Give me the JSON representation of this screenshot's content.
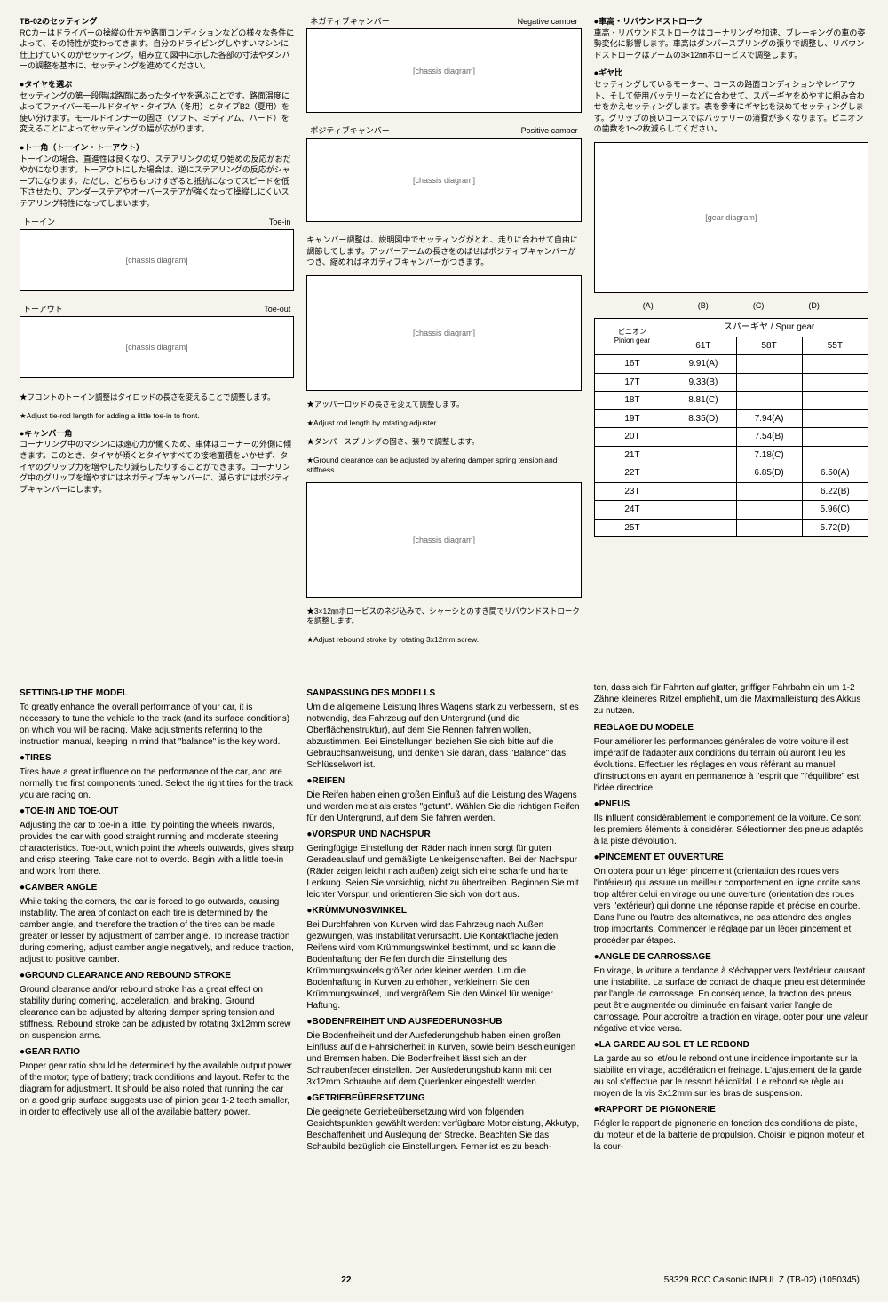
{
  "top": {
    "col1": {
      "jp_head": "TB-02のセッティング",
      "jp_intro": "RCカーはドライバーの操縦の仕方や路面コンディションなどの様々な条件によって、その特性が変わってきます。自分のドライビングしやすいマシンに仕上げていくのがセッティング。組み立て図中に示した各部の寸法やダンパーの調整を基本に、セッティングを進めてください。",
      "jp_tires_head": "●タイヤを選ぶ",
      "jp_tires": "セッティングの第一段階は路面にあったタイヤを選ぶことです。路面温度によってファイバーモールドタイヤ・タイプA（冬用）とタイプB2（夏用）を使い分けます。モールドインナーの固さ（ソフト、ミディアム、ハード）を変えることによってセッティングの幅が広がります。",
      "jp_toe_head": "●トー角（トーイン・トーアウト）",
      "jp_toe": "トーインの場合、直進性は良くなり、ステアリングの切り始めの反応がおだやかになります。トーアウトにした場合は、逆にステアリングの反応がシャープになります。ただし、どちらもつけすぎると抵抗になってスピードを低下させたり、アンダーステアやオーバーステアが強くなって操縦しにくいステアリング特性になってしまいます。",
      "toein_jp": "トーイン",
      "toein_en": "Toe-in",
      "toeout_jp": "トーアウト",
      "toeout_en": "Toe-out",
      "jp_toe_caption": "★フロントのトーイン調整はタイロッドの長さを変えることで調整します。",
      "en_toe_caption": "★Adjust tie-rod length for adding a little toe-in to front.",
      "jp_camber_head": "●キャンバー角",
      "jp_camber": "コーナリング中のマシンには遠心力が働くため、車体はコーナーの外側に傾きます。このとき、タイヤが傾くとタイヤすべての接地面積をいかせず、タイヤのグリップ力を増やしたり減らしたりすることができます。コーナリング中のグリップを増やすにはネガティブキャンバーに、減らすにはポジティブキャンバーにします。"
    },
    "col2": {
      "neg_jp": "ネガティブキャンバー",
      "neg_en": "Negative camber",
      "pos_jp": "ポジティブキャンバー",
      "pos_en": "Positive camber",
      "camber_text_jp": "キャンバー調整は、説明図中でセッティングがとれ、走りに合わせて自由に調節してします。アッパーアームの長さをのばせばポジティブキャンバーがつき、縮めればネガティブキャンバーがつきます。",
      "rod_jp": "★アッパーロッドの長さを変えて調整します。",
      "rod_en": "★Adjust rod length by rotating adjuster.",
      "spring_jp": "★ダンパースプリングの固さ、張りで調整します。",
      "spring_en": "★Ground clearance can be adjusted by altering damper spring tension and stiffness.",
      "rebound_jp": "★3×12㎜ホロービスのネジ込みで、シャーシとのすき間でリバウンドストロークを調整します。",
      "rebound_en": "★Adjust rebound stroke by rotating 3x12mm screw."
    },
    "col3": {
      "jp_ground_head": "●車高・リバウンドストローク",
      "jp_ground": "車高・リバウンドストロークはコーナリングや加速、ブレーキングの車の姿勢変化に影響します。車高はダンパースプリングの張りで調整し、リバウンドストロークはアームの3×12㎜ホロービスで調整します。",
      "jp_gear_head": "●ギヤ比",
      "jp_gear": "セッティングしているモーター、コースの路面コンディションやレイアウト、そして使用バッテリーなどに合わせて、スパーギヤをめやすに組み合わせをかえセッティングします。表を参考にギヤ比を決めてセッティングします。グリップの良いコースではバッテリーの消費が多くなります。ピニオンの歯数を1～2枚減らしてください。",
      "abcd": [
        "(A)",
        "(B)",
        "(C)",
        "(D)"
      ],
      "table": {
        "pinion_jp": "ピニオン",
        "pinion_en": "Pinion gear",
        "spur_jp": "スパーギヤ",
        "spur_en": "Spur gear",
        "cols": [
          "61T",
          "58T",
          "55T"
        ],
        "rows": [
          {
            "p": "16T",
            "v": [
              "9.91(A)",
              "",
              ""
            ]
          },
          {
            "p": "17T",
            "v": [
              "9.33(B)",
              "",
              ""
            ]
          },
          {
            "p": "18T",
            "v": [
              "8.81(C)",
              "",
              ""
            ]
          },
          {
            "p": "19T",
            "v": [
              "8.35(D)",
              "7.94(A)",
              ""
            ]
          },
          {
            "p": "20T",
            "v": [
              "",
              "7.54(B)",
              ""
            ]
          },
          {
            "p": "21T",
            "v": [
              "",
              "7.18(C)",
              ""
            ]
          },
          {
            "p": "22T",
            "v": [
              "",
              "6.85(D)",
              "6.50(A)"
            ]
          },
          {
            "p": "23T",
            "v": [
              "",
              "",
              "6.22(B)"
            ]
          },
          {
            "p": "24T",
            "v": [
              "",
              "",
              "5.96(C)"
            ]
          },
          {
            "p": "25T",
            "v": [
              "",
              "",
              "5.72(D)"
            ]
          }
        ]
      }
    }
  },
  "bottom": {
    "en": {
      "title": "SETTING-UP THE MODEL",
      "intro": "To greatly enhance the overall performance of your car, it is necessary to tune the vehicle to the track (and its surface conditions) on which you will be racing. Make adjustments referring to the instruction manual, keeping in mind that \"balance\" is the key word.",
      "s1": "TIRES",
      "p1": "Tires have a great influence on the performance of the car, and are normally the first components tuned. Select the right tires for the track you are racing on.",
      "s2": "TOE-IN AND TOE-OUT",
      "p2": "Adjusting the car to toe-in a little, by pointing the wheels inwards, provides the car with good straight running and moderate steering characteristics. Toe-out, which point the wheels outwards, gives sharp and crisp steering. Take care not to overdo. Begin with a little toe-in and work from there.",
      "s3": "CAMBER ANGLE",
      "p3": "While taking the corners, the car is forced to go outwards, causing instability. The area of contact on each tire is determined by the camber angle, and therefore the traction of the tires can be made greater or lesser by adjustment of camber angle. To increase traction during cornering, adjust camber angle negatively, and reduce traction, adjust to positive camber.",
      "s4": "GROUND CLEARANCE AND REBOUND STROKE",
      "p4": "Ground clearance and/or rebound stroke has a great effect on stability during cornering, acceleration, and braking. Ground clearance can be adjusted by altering damper spring tension and stiffness. Rebound stroke can be adjusted by rotating 3x12mm screw on suspension arms.",
      "s5": "GEAR RATIO",
      "p5": "Proper gear ratio should be determined by the available output power of the motor; type of battery; track conditions and layout. Refer to the diagram for adjustment. It should be also noted that running the car on a good grip surface suggests use of pinion gear 1-2 teeth smaller, in order to effectively use all of the available battery power."
    },
    "de": {
      "title": "SANPASSUNG DES MODELLS",
      "intro": "Um die allgemeine Leistung Ihres Wagens stark zu verbessern, ist es notwendig, das Fahrzeug auf den Untergrund (und die Oberflächenstruktur), auf dem Sie Rennen fahren wollen, abzustimmen. Bei Einstellungen beziehen Sie sich bitte auf die Gebrauchsanweisung, und denken Sie daran, dass \"Balance\" das Schlüsselwort ist.",
      "s1": "REIFEN",
      "p1": "Die Reifen haben einen großen Einfluß auf die Leistung des Wagens und werden meist als erstes \"getunt\". Wählen Sie die richtigen Reifen für den Untergrund, auf dem Sie fahren werden.",
      "s2": "VORSPUR UND NACHSPUR",
      "p2": "Geringfügige Einstellung der Räder nach innen sorgt für guten Geradeauslauf und gemäßigte Lenkeigenschaften. Bei der Nachspur (Räder zeigen leicht nach außen) zeigt sich eine scharfe und harte Lenkung. Seien Sie vorsichtig, nicht zu übertreiben. Beginnen Sie mit leichter Vorspur, und orientieren Sie sich von dort aus.",
      "s3": "KRÜMMUNGSWINKEL",
      "p3": "Bei Durchfahren von Kurven wird das Fahrzeug nach Außen gezwungen, was Instabilität verursacht. Die Kontaktfläche jeden Reifens wird vom Krümmungswinkel bestimmt, und so kann die Bodenhaftung der Reifen durch die Einstellung des Krümmungswinkels größer oder kleiner werden. Um die Bodenhaftung in Kurven zu erhöhen, verkleinern Sie den Krümmungswinkel, und vergrößern Sie den Winkel für weniger Haftung.",
      "s4": "BODENFREIHEIT UND AUSFEDERUNGSHUB",
      "p4": "Die Bodenfreiheit und der Ausfederungshub haben einen großen Einfluss auf die Fahrsicherheit in Kurven, sowie beim Beschleunigen und Bremsen haben. Die Bodenfreiheit lässt sich an der Schraubenfeder einstellen. Der Ausfederungshub kann mit der 3x12mm Schraube auf dem Querlenker eingestellt werden.",
      "s5": "GETRIEBEÜBERSETZUNG",
      "p5": "Die geeignete Getriebeübersetzung wird von folgenden Gesichtspunkten gewählt werden: verfügbare Motorleistung, Akkutyp, Beschaffenheit und Auslegung der Strecke. Beachten Sie das Schaubild bezüglich die Einstellungen. Ferner ist es zu beach-"
    },
    "de_cont": "ten, dass sich für Fahrten auf glatter, griffiger Fahrbahn ein um 1-2 Zähne kleineres Ritzel empfiehlt, um die Maximalleistung des Akkus zu nutzen.",
    "fr": {
      "title": "REGLAGE DU MODELE",
      "intro": "Pour améliorer les performances générales de votre voiture il est impératif de l'adapter aux conditions du terrain où auront lieu les évolutions. Effectuer les réglages en vous référant au manuel d'instructions en ayant en permanence à l'esprit que \"l'équilibre\" est l'idée directrice.",
      "s1": "PNEUS",
      "p1": "Ils influent considérablement le comportement de la voiture. Ce sont les premiers éléments à considérer. Sélectionner des pneus adaptés à la piste d'évolution.",
      "s2": "PINCEMENT ET OUVERTURE",
      "p2": "On optera pour un léger pincement (orientation des roues vers l'intérieur) qui assure un meilleur comportement en ligne droite sans trop altérer celui en virage ou une ouverture (orientation des roues vers l'extérieur) qui donne une réponse rapide et précise en courbe. Dans l'une ou l'autre des alternatives, ne pas attendre des angles trop importants. Commencer le réglage par un léger pincement et procéder par étapes.",
      "s3": "ANGLE DE CARROSSAGE",
      "p3": "En virage, la voiture a tendance à s'échapper vers l'extérieur causant une instabilité. La surface de contact de chaque pneu est déterminée par l'angle de carrossage. En conséquence, la traction des pneus peut être augmentée ou diminuée en faisant varier l'angle de carrossage. Pour accroître la traction en virage, opter pour une valeur négative et vice versa.",
      "s4": "LA GARDE AU SOL ET LE REBOND",
      "p4": "La garde au sol et/ou le rebond ont une incidence importante sur la stabilité en virage, accélération et freinage. L'ajustement de la garde au sol s'effectue par le ressort hélicoïdal. Le rebond se règle au moyen de la vis 3x12mm sur les bras de suspension.",
      "s5": "RAPPORT DE PIGNONERIE",
      "p5": "Régler le rapport de pignonerie en fonction des conditions de piste, du moteur et de la batterie de propulsion. Choisir le pignon moteur et la cour-"
    }
  },
  "footer": {
    "page": "22",
    "right": "58329 RCC Calsonic IMPUL Z (TB-02) (1050345)"
  },
  "diagram_placeholder": "[chassis diagram]",
  "gear_placeholder": "[gear diagram]"
}
